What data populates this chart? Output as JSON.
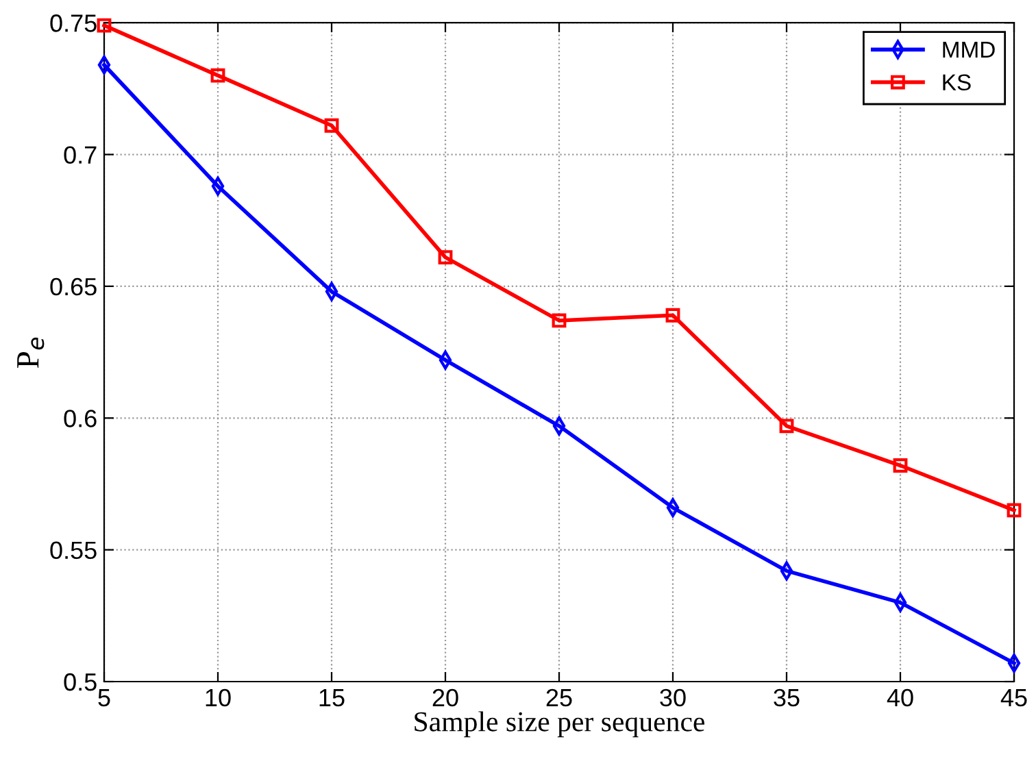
{
  "chart_data": {
    "type": "line",
    "xlabel": "Sample size per sequence",
    "ylabel": "P$_{e}$",
    "x": [
      5,
      10,
      15,
      20,
      25,
      30,
      35,
      40,
      45
    ],
    "series": [
      {
        "name": "MMD",
        "color": "#0000ff",
        "marker": "diamond",
        "values": [
          0.734,
          0.688,
          0.648,
          0.622,
          0.597,
          0.566,
          0.542,
          0.53,
          0.507
        ]
      },
      {
        "name": "KS",
        "color": "#ff0000",
        "marker": "square",
        "values": [
          0.749,
          0.73,
          0.711,
          0.661,
          0.637,
          0.639,
          0.597,
          0.582,
          0.565
        ]
      }
    ],
    "xlim": [
      5,
      45
    ],
    "xticks": [
      5,
      10,
      15,
      20,
      25,
      30,
      35,
      40,
      45
    ],
    "ylim": [
      0.5,
      0.75
    ],
    "yticks": [
      0.5,
      0.55,
      0.6,
      0.65,
      0.7,
      0.75
    ],
    "grid": true,
    "legend": "top right",
    "line_style": "solid"
  }
}
